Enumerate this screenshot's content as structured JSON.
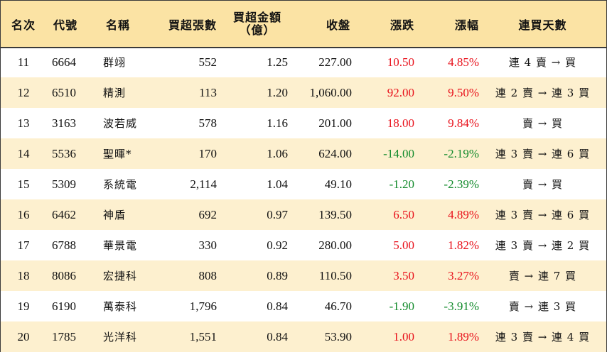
{
  "headers": {
    "rank": "名次",
    "code": "代號",
    "name": "名稱",
    "volume": "買超張數",
    "amount_line1": "買超金額",
    "amount_line2": "（億）",
    "close": "收盤",
    "change": "漲跌",
    "change_pct": "漲幅",
    "streak": "連買天數"
  },
  "colors": {
    "header_bg": "#fbe3a4",
    "alt_row_bg": "#fdf0cf",
    "up": "#e8101a",
    "down": "#118a2a"
  },
  "rows": [
    {
      "rank": "11",
      "code": "6664",
      "name": "群翊",
      "volume": "552",
      "amount": "1.25",
      "close": "227.00",
      "change": "10.50",
      "change_pct": "4.85%",
      "direction": "up",
      "streak": "連 4 賣 → 買"
    },
    {
      "rank": "12",
      "code": "6510",
      "name": "精測",
      "volume": "113",
      "amount": "1.20",
      "close": "1,060.00",
      "change": "92.00",
      "change_pct": "9.50%",
      "direction": "up",
      "streak": "連 2 賣 → 連 3 買"
    },
    {
      "rank": "13",
      "code": "3163",
      "name": "波若威",
      "volume": "578",
      "amount": "1.16",
      "close": "201.00",
      "change": "18.00",
      "change_pct": "9.84%",
      "direction": "up",
      "streak": "賣 → 買"
    },
    {
      "rank": "14",
      "code": "5536",
      "name": "聖暉*",
      "volume": "170",
      "amount": "1.06",
      "close": "624.00",
      "change": "-14.00",
      "change_pct": "-2.19%",
      "direction": "down",
      "streak": "連 3 賣 → 連 6 買"
    },
    {
      "rank": "15",
      "code": "5309",
      "name": "系統電",
      "volume": "2,114",
      "amount": "1.04",
      "close": "49.10",
      "change": "-1.20",
      "change_pct": "-2.39%",
      "direction": "down",
      "streak": "賣 → 買"
    },
    {
      "rank": "16",
      "code": "6462",
      "name": "神盾",
      "volume": "692",
      "amount": "0.97",
      "close": "139.50",
      "change": "6.50",
      "change_pct": "4.89%",
      "direction": "up",
      "streak": "連 3 賣 → 連 6 買"
    },
    {
      "rank": "17",
      "code": "6788",
      "name": "華景電",
      "volume": "330",
      "amount": "0.92",
      "close": "280.00",
      "change": "5.00",
      "change_pct": "1.82%",
      "direction": "up",
      "streak": "連 3 賣 → 連 2 買"
    },
    {
      "rank": "18",
      "code": "8086",
      "name": "宏捷科",
      "volume": "808",
      "amount": "0.89",
      "close": "110.50",
      "change": "3.50",
      "change_pct": "3.27%",
      "direction": "up",
      "streak": "賣 → 連 7 買"
    },
    {
      "rank": "19",
      "code": "6190",
      "name": "萬泰科",
      "volume": "1,796",
      "amount": "0.84",
      "close": "46.70",
      "change": "-1.90",
      "change_pct": "-3.91%",
      "direction": "down",
      "streak": "賣 → 連 3 買"
    },
    {
      "rank": "20",
      "code": "1785",
      "name": "光洋科",
      "volume": "1,551",
      "amount": "0.84",
      "close": "53.90",
      "change": "1.00",
      "change_pct": "1.89%",
      "direction": "up",
      "streak": "連 3 賣 → 連 4 買"
    }
  ]
}
